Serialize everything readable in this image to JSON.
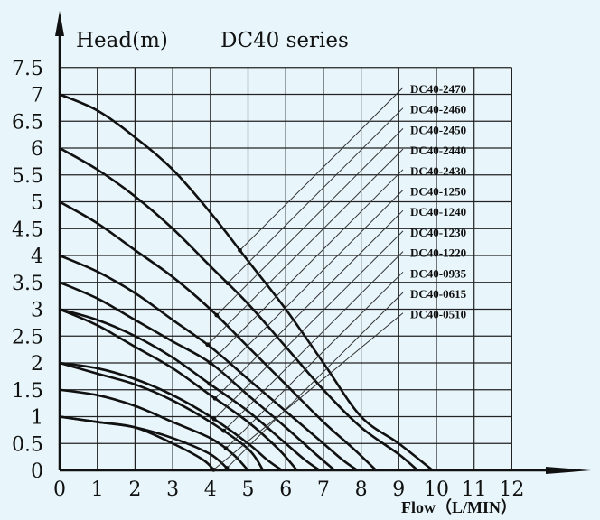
{
  "chart_data": {
    "type": "line",
    "title": "DC40 series",
    "ylabel": "Head(m)",
    "xlabel": "Flow（L/MIN）",
    "xlim": [
      0,
      12
    ],
    "ylim": [
      0,
      7.5
    ],
    "x_ticks": [
      "0",
      "1",
      "2",
      "3",
      "4",
      "5",
      "6",
      "7",
      "8",
      "9",
      "10",
      "11",
      "12"
    ],
    "y_ticks": [
      "0",
      "0.5",
      "1",
      "1.5",
      "2",
      "2.5",
      "3",
      "3.5",
      "4",
      "4.5",
      "5",
      "5.5",
      "6",
      "6.5",
      "7",
      "7.5"
    ],
    "grid": true,
    "legend_position": "top-right",
    "series": [
      {
        "name": "DC40-2470",
        "points": [
          [
            0,
            7
          ],
          [
            1,
            6.7
          ],
          [
            2,
            6.2
          ],
          [
            3,
            5.6
          ],
          [
            4,
            4.8
          ],
          [
            5,
            3.9
          ],
          [
            6,
            3
          ],
          [
            7,
            2
          ],
          [
            8,
            1
          ],
          [
            9,
            0.5
          ],
          [
            9.9,
            0
          ]
        ]
      },
      {
        "name": "DC40-2460",
        "points": [
          [
            0,
            6
          ],
          [
            1,
            5.6
          ],
          [
            2,
            5.1
          ],
          [
            3,
            4.5
          ],
          [
            4,
            3.8
          ],
          [
            5,
            3.1
          ],
          [
            6,
            2.3
          ],
          [
            7,
            1.5
          ],
          [
            8,
            0.8
          ],
          [
            9,
            0.3
          ],
          [
            9.5,
            0
          ]
        ]
      },
      {
        "name": "DC40-2450",
        "points": [
          [
            0,
            5
          ],
          [
            1,
            4.6
          ],
          [
            2,
            4.1
          ],
          [
            3,
            3.6
          ],
          [
            4,
            3
          ],
          [
            5,
            2.3
          ],
          [
            6,
            1.6
          ],
          [
            7,
            0.9
          ],
          [
            7.8,
            0.4
          ],
          [
            8.4,
            0
          ]
        ]
      },
      {
        "name": "DC40-2440",
        "points": [
          [
            0,
            4
          ],
          [
            1,
            3.7
          ],
          [
            2,
            3.3
          ],
          [
            3,
            2.8
          ],
          [
            4,
            2.3
          ],
          [
            5,
            1.7
          ],
          [
            6,
            1.1
          ],
          [
            7,
            0.5
          ],
          [
            7.5,
            0.2
          ],
          [
            7.9,
            0
          ]
        ]
      },
      {
        "name": "DC40-2430",
        "points": [
          [
            0,
            3.5
          ],
          [
            1,
            3.2
          ],
          [
            2,
            2.8
          ],
          [
            3,
            2.4
          ],
          [
            4,
            2
          ],
          [
            5,
            1.4
          ],
          [
            6,
            0.8
          ],
          [
            6.8,
            0.3
          ],
          [
            7.3,
            0
          ]
        ]
      },
      {
        "name": "DC40-1250",
        "points": [
          [
            0,
            3
          ],
          [
            1,
            2.8
          ],
          [
            2,
            2.5
          ],
          [
            3,
            2.1
          ],
          [
            4,
            1.6
          ],
          [
            5,
            1.1
          ],
          [
            6,
            0.5
          ],
          [
            6.5,
            0.2
          ],
          [
            6.9,
            0
          ]
        ]
      },
      {
        "name": "DC40-1240",
        "points": [
          [
            0,
            3
          ],
          [
            1,
            2.7
          ],
          [
            2,
            2.3
          ],
          [
            3,
            1.9
          ],
          [
            4,
            1.4
          ],
          [
            5,
            0.9
          ],
          [
            5.8,
            0.4
          ],
          [
            6.3,
            0
          ]
        ]
      },
      {
        "name": "DC40-1230",
        "points": [
          [
            0,
            2
          ],
          [
            1,
            1.9
          ],
          [
            2,
            1.7
          ],
          [
            3,
            1.4
          ],
          [
            4,
            1
          ],
          [
            5,
            0.5
          ],
          [
            5.5,
            0.2
          ],
          [
            5.9,
            0
          ]
        ]
      },
      {
        "name": "DC40-1220",
        "points": [
          [
            0,
            2
          ],
          [
            1,
            1.8
          ],
          [
            2,
            1.6
          ],
          [
            3,
            1.3
          ],
          [
            4,
            0.9
          ],
          [
            5,
            0.4
          ],
          [
            5.4,
            0
          ]
        ]
      },
      {
        "name": "DC40-0935",
        "points": [
          [
            0,
            1.5
          ],
          [
            1,
            1.4
          ],
          [
            2,
            1.2
          ],
          [
            3,
            0.9
          ],
          [
            4,
            0.6
          ],
          [
            4.6,
            0.3
          ],
          [
            5,
            0
          ]
        ]
      },
      {
        "name": "DC40-0615",
        "points": [
          [
            0,
            1
          ],
          [
            1,
            0.9
          ],
          [
            2,
            0.8
          ],
          [
            3,
            0.6
          ],
          [
            4,
            0.3
          ],
          [
            4.5,
            0
          ]
        ]
      },
      {
        "name": "DC40-0510",
        "points": [
          [
            0,
            1
          ],
          [
            1,
            0.9
          ],
          [
            2,
            0.8
          ],
          [
            3,
            0.5
          ],
          [
            3.8,
            0.2
          ],
          [
            4.1,
            0
          ]
        ]
      }
    ]
  }
}
